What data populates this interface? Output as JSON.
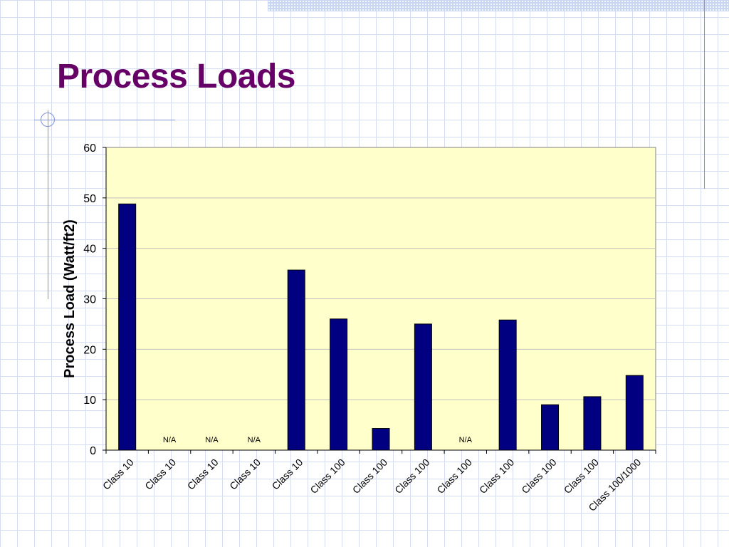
{
  "slide": {
    "title": "Process Loads"
  },
  "colors": {
    "title": "#660066",
    "plot_background": "#ffffcc",
    "bar_fill": "#000080",
    "grid": "#c0c0c0"
  },
  "chart_data": {
    "type": "bar",
    "title": "",
    "xlabel": "",
    "ylabel": "Process Load (Watt/ft2)",
    "ylim": [
      0,
      60
    ],
    "yticks": [
      0,
      10,
      20,
      30,
      40,
      50,
      60
    ],
    "grid": true,
    "legend": "none",
    "categories": [
      "Class 10",
      "Class 10",
      "Class 10",
      "Class 10",
      "Class 10",
      "Class 100",
      "Class 100",
      "Class 100",
      "Class 100",
      "Class 100",
      "Class 100",
      "Class 100",
      "Class 100/1000"
    ],
    "values": [
      48.8,
      null,
      null,
      null,
      35.7,
      26.0,
      4.3,
      25.0,
      null,
      25.8,
      9.0,
      10.6,
      14.8
    ],
    "data_labels": [
      "",
      "N/A",
      "N/A",
      "N/A",
      "",
      "",
      "",
      "",
      "N/A",
      "",
      "",
      "",
      ""
    ]
  }
}
